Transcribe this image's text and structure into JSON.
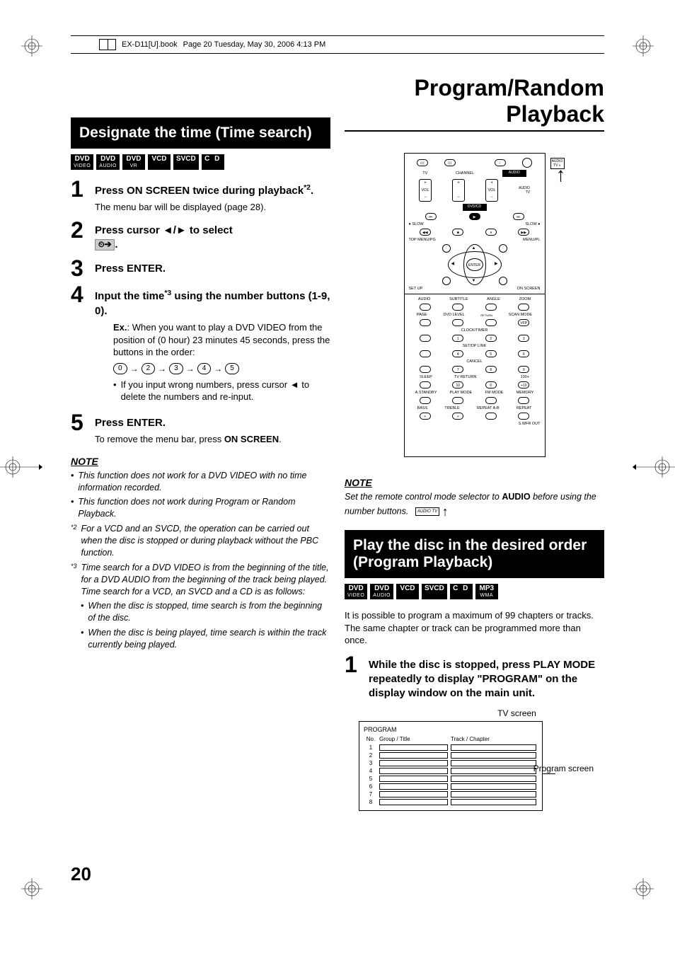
{
  "header": {
    "filename": "EX-D11[U].book",
    "pageinfo": "Page 20  Tuesday, May 30, 2006  4:13 PM"
  },
  "pageTitle": "Program/Random Playback",
  "section1": {
    "heading": "Designate the time (Time search)",
    "badges": [
      {
        "top": "DVD",
        "sub": "VIDEO"
      },
      {
        "top": "DVD",
        "sub": "AUDIO"
      },
      {
        "top": "DVD",
        "sub": "VR"
      },
      {
        "top": "VCD"
      },
      {
        "top": "SVCD"
      },
      {
        "top": "C D",
        "letterspace": true
      }
    ],
    "steps": [
      {
        "num": "1",
        "main": "Press ON SCREEN twice during playback",
        "mainSup": "*2",
        "mainEnd": ".",
        "sub": "The menu bar will be displayed (page 28)."
      },
      {
        "num": "2",
        "main": "Press cursor ◄/► to select",
        "iconAfter": "⏲➔",
        "mainEnd": "."
      },
      {
        "num": "3",
        "main": "Press ENTER."
      },
      {
        "num": "4",
        "main": "Input the time",
        "mainSup": "*3",
        "mainEnd": " using the number buttons (1-9, 0).",
        "exLabel": "Ex.",
        "exText": ": When you want to play a DVD VIDEO from the position of (0 hour) 23 minutes 45 seconds, press the buttons in the order:",
        "seq": [
          "0",
          "2",
          "3",
          "4",
          "5"
        ],
        "bullet": "If you input wrong numbers, press cursor ◄ to delete the numbers and re-input."
      },
      {
        "num": "5",
        "main": "Press ENTER.",
        "sub": "To remove the menu bar, press ",
        "subBold": "ON SCREEN",
        "subEnd": "."
      }
    ],
    "noteHeading": "NOTE",
    "notes": [
      {
        "bullet": "•",
        "text": "This function does not work for a DVD VIDEO with no time information recorded."
      },
      {
        "bullet": "•",
        "text": "This function does not work during Program or Random Playback."
      },
      {
        "bullet": "*2",
        "text": "For a VCD and an SVCD, the operation can be carried out when the disc is stopped or during playback without the PBC function."
      },
      {
        "bullet": "*3",
        "text": "Time search for a DVD VIDEO is from the beginning of the title, for a DVD AUDIO from the beginning of the track being played. Time search for a VCD, an SVCD and a CD is as follows:",
        "sub": [
          "When the disc is stopped, time search is from the beginning of the disc.",
          "When the disc is being played, time search is within the track currently being played."
        ]
      }
    ]
  },
  "remote": {
    "row1": [
      "⟨⟨⟨",
      "⟩⟩⟩",
      "☾",
      ""
    ],
    "row2lbl": [
      "TV",
      "CHANNEL",
      "AUDIO"
    ],
    "vol": "VOL",
    "dvdcd": "DVD/CD",
    "topmenu": "TOP MENU/PG",
    "menupl": "MENU/PL",
    "enter": "ENTER",
    "setup": "SET UP",
    "onscreen": "ON SCREEN",
    "labels1": [
      "AUDIO",
      "SUBTITLE",
      "ANGLE",
      "ZOOM"
    ],
    "labels2": [
      "PAGE",
      "DVD LEVEL",
      "RETURN",
      "SCAN MODE"
    ],
    "labels3": "CLOCK/TIMER",
    "labels4": "SET/DP LINK",
    "labels5": "CANCEL",
    "labels6": [
      "SLEEP",
      "TV RETURN",
      "",
      "100+"
    ],
    "labels7": [
      "A.STANDBY",
      "PLAY MODE",
      "FM MODE",
      "MEMORY"
    ],
    "labels8": [
      "BASS",
      "TREBLE",
      "REPEAT A-B",
      "REPEAT"
    ],
    "swfr": "S.WFR OUT",
    "slow1": "● SLOW",
    "slow2": "SLOW ●",
    "audioTv": "AUDIO\nTV",
    "vfp": "VFP",
    "plus10": "+10"
  },
  "remoteNote": {
    "heading": "NOTE",
    "text1": "Set the remote control mode selector to ",
    "bold": "AUDIO",
    "text2": " before using the number buttons.",
    "sel": "AUDIO\nTV"
  },
  "section2": {
    "heading": "Play the disc in the desired order (Program Playback)",
    "badges": [
      {
        "top": "DVD",
        "sub": "VIDEO"
      },
      {
        "top": "DVD",
        "sub": "AUDIO"
      },
      {
        "top": "VCD"
      },
      {
        "top": "SVCD"
      },
      {
        "top": "C D",
        "letterspace": true
      },
      {
        "top": "MP3",
        "sub": "WMA"
      }
    ],
    "intro": "It is possible to program a maximum of 99 chapters or tracks. The same chapter or track can be programmed more than once.",
    "step": {
      "num": "1",
      "main": "While the disc is stopped, press PLAY MODE repeatedly to display \"PROGRAM\" on the display window on the main unit."
    },
    "tvScreenLabel": "TV screen",
    "programLabel": "PROGRAM",
    "cols": [
      "No.",
      "Group / Title",
      "Track / Chapter"
    ],
    "rows": [
      "1",
      "2",
      "3",
      "4",
      "5",
      "6",
      "7",
      "8"
    ],
    "progScreenLabel": "Program screen"
  },
  "pageNumber": "20"
}
